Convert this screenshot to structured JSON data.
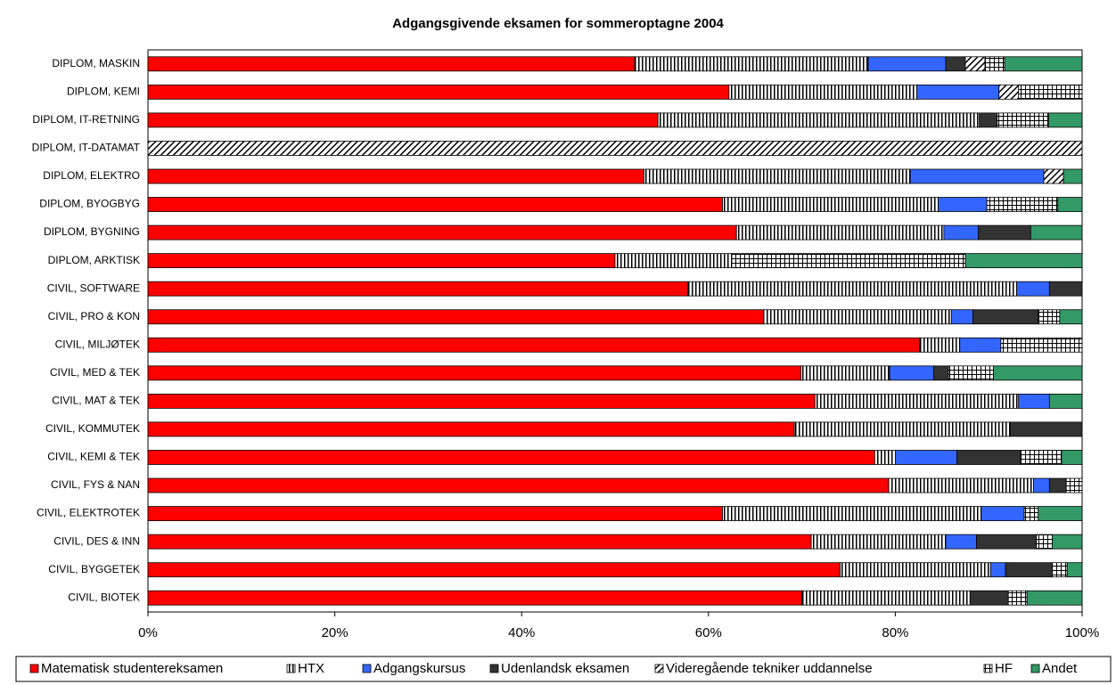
{
  "chart_data": {
    "type": "stacked-bar-horizontal",
    "title": "Adgangsgivende eksamen for sommeroptagne 2004",
    "categories": [
      "DIPLOM, MASKIN",
      "DIPLOM, KEMI",
      "DIPLOM, IT-RETNING",
      "DIPLOM, IT-DATAMAT",
      "DIPLOM, ELEKTRO",
      "DIPLOM, BYOGBYG",
      "DIPLOM, BYGNING",
      "DIPLOM, ARKTISK",
      "CIVIL, SOFTWARE",
      "CIVIL, PRO & KON",
      "CIVIL, MILJØTEK",
      "CIVIL, MED & TEK",
      "CIVIL, MAT & TEK",
      "CIVIL, KOMMUTEK",
      "CIVIL, KEMI & TEK",
      "CIVIL, FYS & NAN",
      "CIVIL, ELEKTROTEK",
      "CIVIL, DES & INN",
      "CIVIL, BYGGETEK",
      "CIVIL, BIOTEK"
    ],
    "series": [
      {
        "name": "Matematisk studentereksamen",
        "color": "#ff0000",
        "values": [
          52.1,
          62.2,
          54.6,
          0,
          53.1,
          61.5,
          63.0,
          50.0,
          57.8,
          65.9,
          82.6,
          69.9,
          71.4,
          69.2,
          77.8,
          79.3,
          61.5,
          71.0,
          74.1,
          70.0
        ]
      },
      {
        "name": "HTX",
        "color": "#000000",
        "pattern": "vertical",
        "values": [
          25.0,
          20.1,
          34.4,
          0,
          28.5,
          23.1,
          22.2,
          12.5,
          35.2,
          20.1,
          4.3,
          9.5,
          21.8,
          23.1,
          2.2,
          15.5,
          27.7,
          14.4,
          16.1,
          18.0
        ]
      },
      {
        "name": "Adgangskursus",
        "color": "#3366ff",
        "values": [
          8.3,
          8.8,
          0,
          0,
          14.3,
          5.2,
          3.7,
          0,
          3.5,
          2.3,
          4.4,
          4.7,
          3.3,
          0,
          6.6,
          1.7,
          4.6,
          3.3,
          1.6,
          0
        ]
      },
      {
        "name": "Udenlandsk eksamen",
        "color": "#333333",
        "values": [
          2.1,
          0,
          1.9,
          0,
          0,
          0,
          5.6,
          0,
          3.5,
          7.0,
          0,
          1.6,
          0,
          7.7,
          6.8,
          1.8,
          0,
          6.4,
          5.0,
          4.1
        ]
      },
      {
        "name": "Videregående tekniker uddannelse",
        "color": "#000000",
        "pattern": "diagonal",
        "values": [
          2.1,
          2.1,
          0,
          100,
          2.1,
          0,
          0,
          0,
          0,
          0,
          0,
          0,
          0,
          0,
          0,
          0,
          0,
          0,
          0,
          0
        ]
      },
      {
        "name": "HF",
        "color": "#000000",
        "pattern": "grid",
        "values": [
          2.1,
          6.8,
          5.5,
          0,
          0,
          7.6,
          0,
          25.0,
          0,
          2.3,
          8.7,
          4.8,
          0,
          0,
          4.4,
          1.7,
          1.5,
          1.7,
          1.6,
          2.0
        ]
      },
      {
        "name": "Andet",
        "color": "#339966",
        "values": [
          8.3,
          0,
          3.6,
          0,
          2.0,
          2.6,
          5.5,
          12.5,
          0,
          2.4,
          0,
          9.5,
          3.5,
          0,
          2.2,
          0,
          4.7,
          3.2,
          1.6,
          5.9
        ]
      }
    ],
    "xlim": [
      0,
      100
    ],
    "xticks": [
      {
        "value": 0,
        "label": "0%"
      },
      {
        "value": 20,
        "label": "20%"
      },
      {
        "value": 40,
        "label": "40%"
      },
      {
        "value": 60,
        "label": "60%"
      },
      {
        "value": 80,
        "label": "80%"
      },
      {
        "value": 100,
        "label": "100%"
      }
    ],
    "legend": "bottom"
  }
}
